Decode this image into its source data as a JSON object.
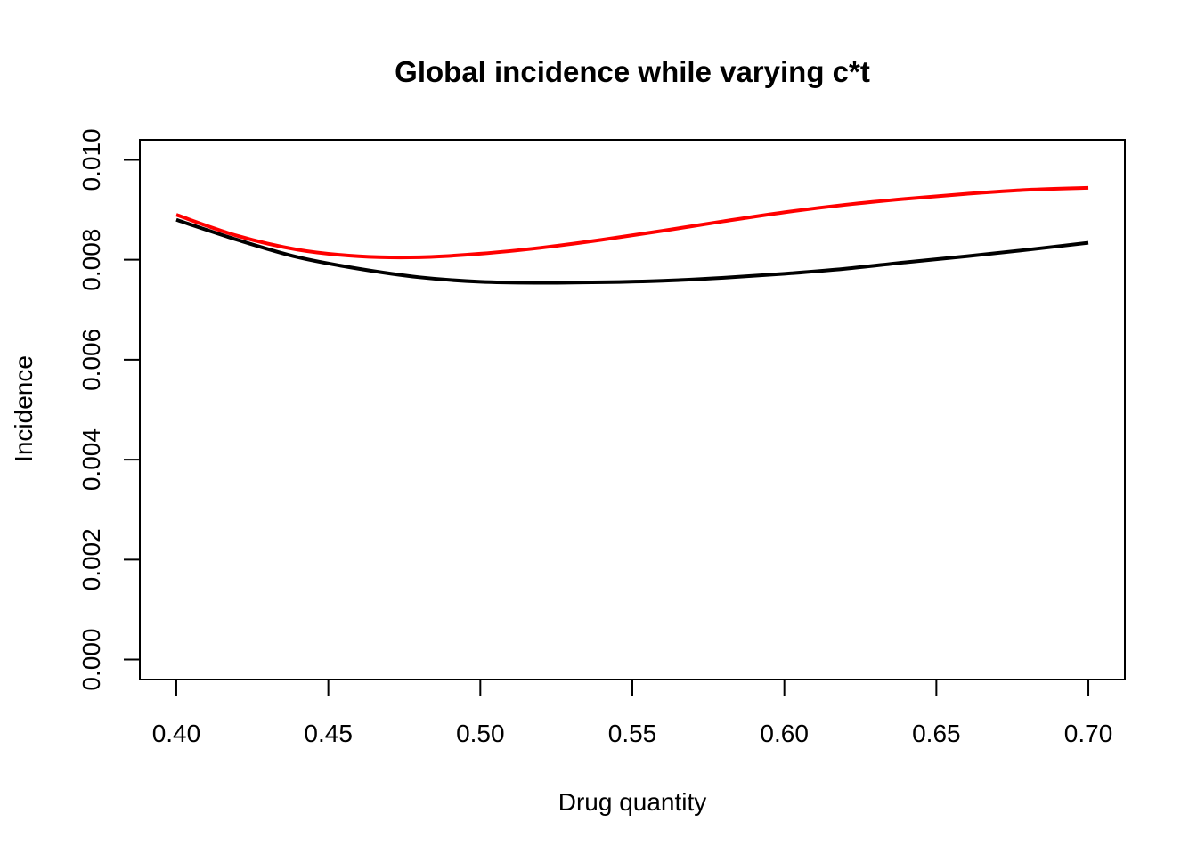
{
  "chart_data": {
    "type": "line",
    "title": "Global incidence while varying c*t",
    "xlabel": "Drug quantity",
    "ylabel": "Incidence",
    "xlim": [
      0.388,
      0.712
    ],
    "ylim": [
      -0.0004,
      0.0104
    ],
    "xticks": [
      0.4,
      0.45,
      0.5,
      0.55,
      0.6,
      0.65,
      0.7
    ],
    "xtick_labels": [
      "0.40",
      "0.45",
      "0.50",
      "0.55",
      "0.60",
      "0.65",
      "0.70"
    ],
    "yticks": [
      0.0,
      0.002,
      0.004,
      0.006,
      0.008,
      0.01
    ],
    "ytick_labels": [
      "0.000",
      "0.002",
      "0.004",
      "0.006",
      "0.008",
      "0.010"
    ],
    "grid": false,
    "legend": "none",
    "series": [
      {
        "color": "#000000",
        "x": [
          0.4,
          0.42,
          0.44,
          0.46,
          0.48,
          0.5,
          0.52,
          0.54,
          0.56,
          0.58,
          0.6,
          0.62,
          0.64,
          0.66,
          0.68,
          0.7
        ],
        "y": [
          0.0088,
          0.0084,
          0.00805,
          0.00782,
          0.00765,
          0.00756,
          0.00754,
          0.00755,
          0.00758,
          0.00764,
          0.00772,
          0.00782,
          0.00795,
          0.00807,
          0.0082,
          0.00834
        ]
      },
      {
        "color": "#ff0000",
        "x": [
          0.4,
          0.42,
          0.44,
          0.46,
          0.48,
          0.5,
          0.52,
          0.54,
          0.56,
          0.58,
          0.6,
          0.62,
          0.64,
          0.66,
          0.68,
          0.7
        ],
        "y": [
          0.0089,
          0.00848,
          0.0082,
          0.00807,
          0.00805,
          0.00812,
          0.00824,
          0.0084,
          0.00858,
          0.00877,
          0.00895,
          0.0091,
          0.00922,
          0.00932,
          0.0094,
          0.00944
        ]
      }
    ]
  }
}
